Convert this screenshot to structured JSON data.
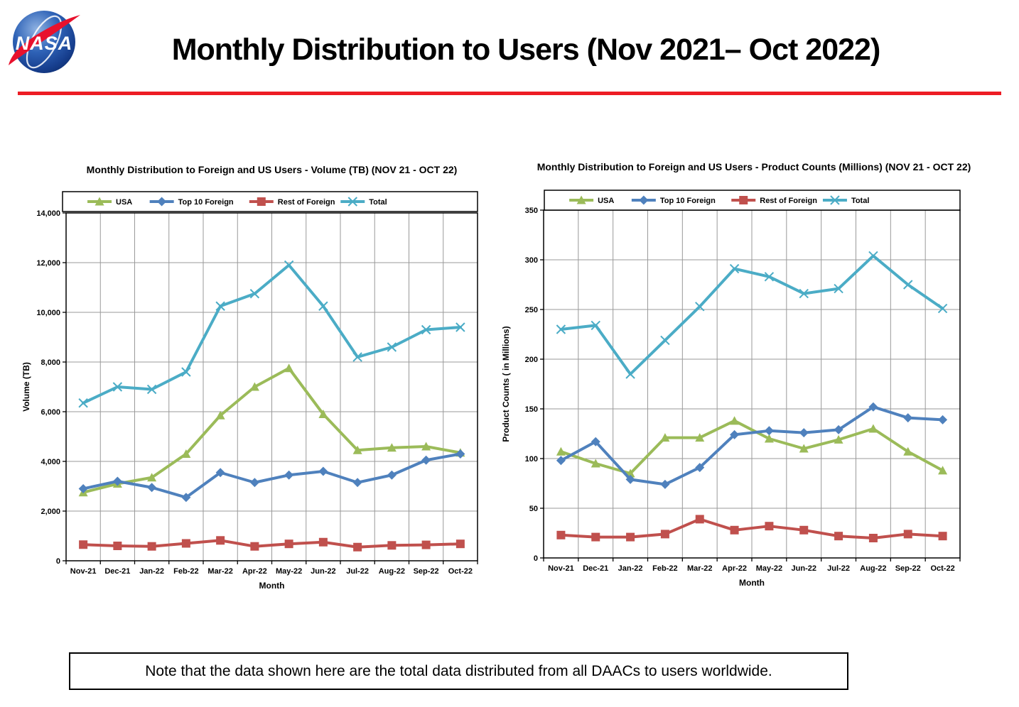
{
  "header": {
    "title": "Monthly Distribution to Users (Nov 2021– Oct 2022)",
    "logo_text": "NASA"
  },
  "divider_color": "#ED1C24",
  "note": {
    "text": "Note that the data shown here are the total data distributed from all DAACs to users worldwide."
  },
  "colors": {
    "usa": "#9BBB59",
    "top10_foreign": "#4F81BD",
    "rest_of_foreign": "#C0504D",
    "total": "#4BACC6",
    "grid": "#999999",
    "axis": "#000000"
  },
  "chart_data": [
    {
      "type": "line",
      "title": "Monthly Distribution to Foreign and US Users - Volume  (TB) (NOV 21 - OCT 22)",
      "xlabel": "Month",
      "ylabel": "Volume (TB)",
      "ylim": [
        0,
        14000
      ],
      "ytick_step": 2000,
      "y_format": "comma",
      "grid": true,
      "legend_position": "top",
      "categories": [
        "Nov-21",
        "Dec-21",
        "Jan-22",
        "Feb-22",
        "Mar-22",
        "Apr-22",
        "May-22",
        "Jun-22",
        "Jul-22",
        "Aug-22",
        "Sep-22",
        "Oct-22"
      ],
      "series": [
        {
          "name": "USA",
          "color": "#9BBB59",
          "marker": "triangle",
          "values": [
            2750,
            3100,
            3350,
            4300,
            5850,
            7000,
            7750,
            5900,
            4450,
            4550,
            4600,
            4350
          ]
        },
        {
          "name": "Top 10 Foreign",
          "color": "#4F81BD",
          "marker": "diamond",
          "values": [
            2900,
            3200,
            2950,
            2550,
            3550,
            3150,
            3450,
            3600,
            3150,
            3450,
            4050,
            4300
          ]
        },
        {
          "name": "Rest of Foreign",
          "color": "#C0504D",
          "marker": "square",
          "values": [
            650,
            600,
            580,
            700,
            820,
            580,
            680,
            750,
            550,
            620,
            640,
            680
          ]
        },
        {
          "name": "Total",
          "color": "#4BACC6",
          "marker": "xstar",
          "values": [
            6350,
            7000,
            6900,
            7600,
            10250,
            10750,
            11900,
            10250,
            8200,
            8600,
            9300,
            9400
          ]
        }
      ]
    },
    {
      "type": "line",
      "title": "Monthly Distribution to Foreign and US Users - Product Counts (Millions) (NOV 21 - OCT 22)",
      "xlabel": "Month",
      "ylabel": "Product Counts ( in Millions)",
      "ylim": [
        0,
        350
      ],
      "ytick_step": 50,
      "y_format": "plain",
      "grid": true,
      "legend_position": "top",
      "categories": [
        "Nov-21",
        "Dec-21",
        "Jan-22",
        "Feb-22",
        "Mar-22",
        "Apr-22",
        "May-22",
        "Jun-22",
        "Jul-22",
        "Aug-22",
        "Sep-22",
        "Oct-22"
      ],
      "series": [
        {
          "name": "USA",
          "color": "#9BBB59",
          "marker": "triangle",
          "values": [
            107,
            95,
            85,
            121,
            121,
            138,
            120,
            110,
            119,
            130,
            107,
            88
          ]
        },
        {
          "name": "Top 10 Foreign",
          "color": "#4F81BD",
          "marker": "diamond",
          "values": [
            98,
            117,
            79,
            74,
            91,
            124,
            128,
            126,
            129,
            152,
            141,
            139
          ]
        },
        {
          "name": "Rest of Foreign",
          "color": "#C0504D",
          "marker": "square",
          "values": [
            23,
            21,
            21,
            24,
            39,
            28,
            32,
            28,
            22,
            20,
            24,
            22
          ]
        },
        {
          "name": "Total",
          "color": "#4BACC6",
          "marker": "xstar",
          "values": [
            230,
            234,
            185,
            219,
            253,
            291,
            283,
            266,
            271,
            304,
            275,
            251
          ]
        }
      ]
    }
  ]
}
